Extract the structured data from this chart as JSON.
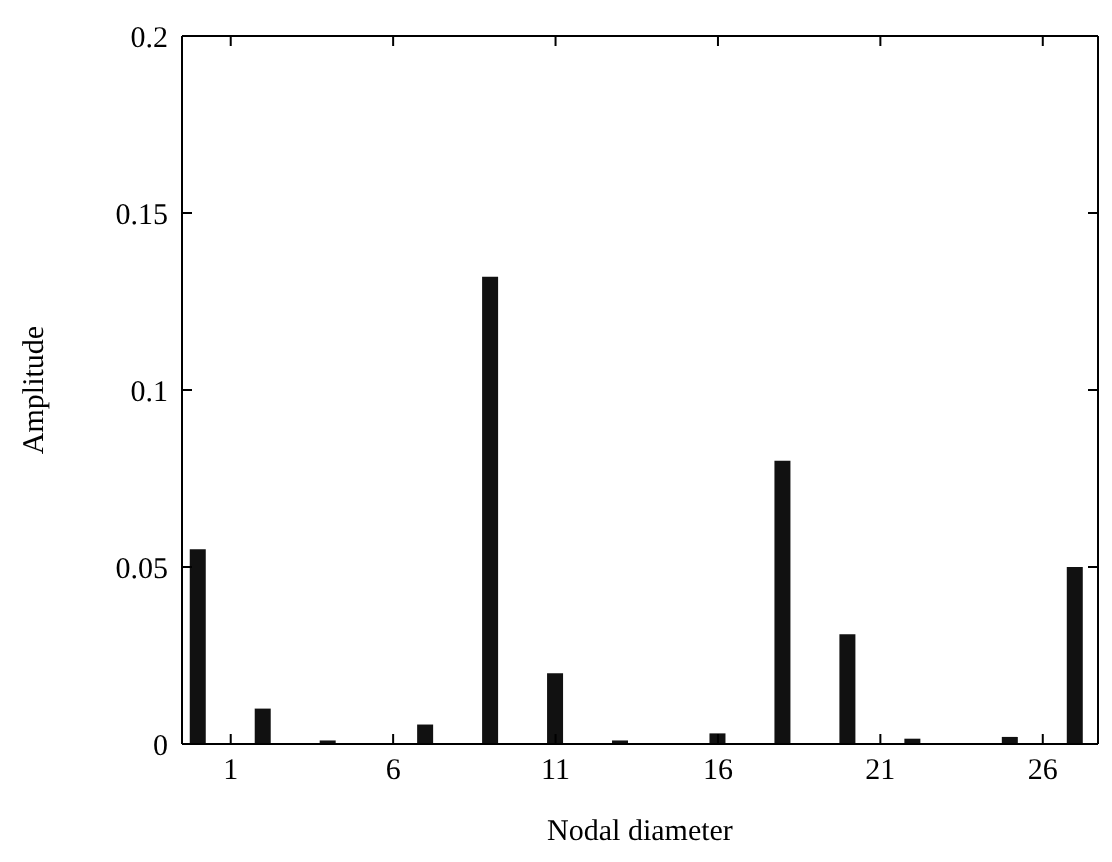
{
  "chart_data": {
    "type": "bar",
    "xlabel": "Nodal diameter",
    "ylabel": "Amplitude",
    "x": [
      0,
      2,
      4,
      7,
      9,
      11,
      13,
      16,
      18,
      20,
      22,
      25,
      27
    ],
    "values": [
      0.055,
      0.01,
      0.001,
      0.0055,
      0.132,
      0.02,
      0.001,
      0.003,
      0.08,
      0.031,
      0.0015,
      0.002,
      0.05
    ],
    "color": "#111111",
    "xlim": [
      -0.5,
      27.7
    ],
    "xticks": [
      1,
      6,
      11,
      16,
      21,
      26
    ],
    "ylim": [
      0,
      0.2
    ],
    "yticks": [
      0,
      0.05,
      0.1,
      0.15,
      0.2
    ],
    "grid": false,
    "legend": false
  }
}
